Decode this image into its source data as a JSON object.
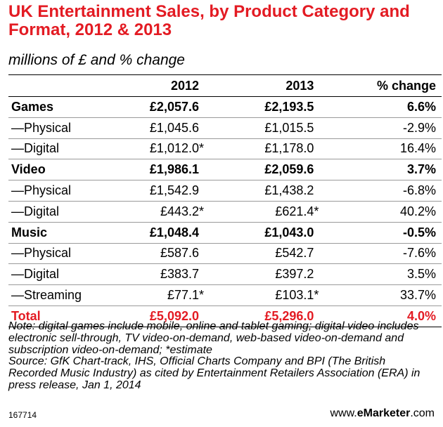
{
  "title": "UK Entertainment Sales, by Product Category and Format, 2012 & 2013",
  "subtitle": "millions of £ and % change",
  "chart_data": {
    "type": "table",
    "columns": [
      "",
      "2012",
      "2013",
      "% change"
    ],
    "rows": [
      {
        "label": "Games",
        "v2012": "£2,057.6",
        "v2013": "£2,193.5",
        "pct": "6.6%",
        "style": "bold",
        "star2012": "",
        "star2013": ""
      },
      {
        "label": "—Physical",
        "v2012": "£1,045.6",
        "v2013": "£1,015.5",
        "pct": "-2.9%",
        "style": "normal",
        "star2012": "",
        "star2013": ""
      },
      {
        "label": "—Digital",
        "v2012": "£1,012.0",
        "v2013": "£1,178.0",
        "pct": "16.4%",
        "style": "normal",
        "star2012": "*",
        "star2013": ""
      },
      {
        "label": "Video",
        "v2012": "£1,986.1",
        "v2013": "£2,059.6",
        "pct": "3.7%",
        "style": "bold",
        "star2012": "",
        "star2013": ""
      },
      {
        "label": "—Physical",
        "v2012": "£1,542.9",
        "v2013": "£1,438.2",
        "pct": "-6.8%",
        "style": "normal",
        "star2012": "",
        "star2013": ""
      },
      {
        "label": "—Digital",
        "v2012": "£443.2",
        "v2013": "£621.4",
        "pct": "40.2%",
        "style": "normal",
        "star2012": "*",
        "star2013": "*"
      },
      {
        "label": "Music",
        "v2012": "£1,048.4",
        "v2013": "£1,043.0",
        "pct": "-0.5%",
        "style": "bold",
        "star2012": "",
        "star2013": ""
      },
      {
        "label": "—Physical",
        "v2012": "£587.6",
        "v2013": "£542.7",
        "pct": "-7.6%",
        "style": "normal",
        "star2012": "",
        "star2013": ""
      },
      {
        "label": "—Digital",
        "v2012": "£383.7",
        "v2013": "£397.2",
        "pct": "3.5%",
        "style": "normal",
        "star2012": "",
        "star2013": ""
      },
      {
        "label": "—Streaming",
        "v2012": "£77.1",
        "v2013": "£103.1",
        "pct": "33.7%",
        "style": "normal",
        "star2012": "*",
        "star2013": "*"
      },
      {
        "label": "Total",
        "v2012": "£5,092.0",
        "v2013": "£5,296.0",
        "pct": "4.0%",
        "style": "total",
        "star2012": "",
        "star2013": ""
      }
    ]
  },
  "note": "Note: digital games include mobile, online and tablet gaming; digital video includes electronic sell-through, TV video-on-demand, web-based video-on-demand and subscription video-on-demand; *estimate",
  "source": "Source: GfK Chart-track, IHS, Official Charts Company and BPI (The British Recorded Music Industry) as cited by Entertainment Retailers Association (ERA) in press release, Jan 1, 2014",
  "footer_id": "167714",
  "brand": {
    "prefix": "www.",
    "name": "eMarketer",
    "suffix": ".com"
  },
  "colors": {
    "accent": "#e31b23",
    "rule": "#9a9a9a"
  }
}
